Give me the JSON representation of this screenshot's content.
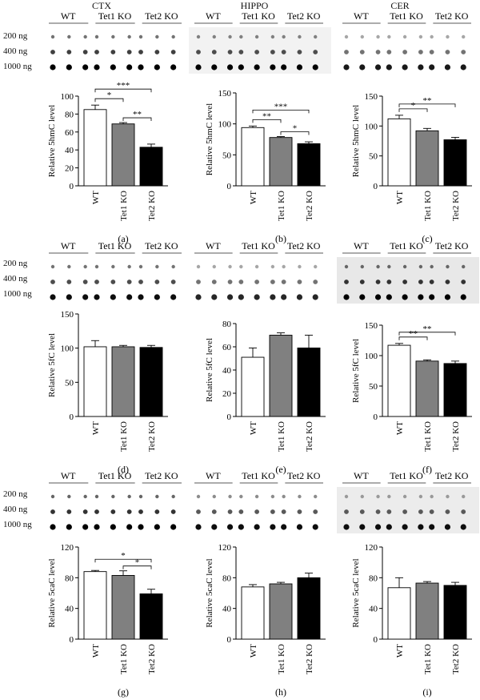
{
  "regions": [
    "CTX",
    "HIPPO",
    "CER"
  ],
  "dose_labels": [
    "200 ng",
    "400 ng",
    "1000 ng"
  ],
  "groups": [
    "WT",
    "Tet1 KO",
    "Tet2 KO"
  ],
  "chart_data": [
    {
      "id": "a",
      "panel_label": "(a)",
      "type": "bar",
      "ylabel": "Relative 5hmC level",
      "ylim": [
        0,
        100
      ],
      "yticks": [
        0,
        20,
        40,
        60,
        80,
        100
      ],
      "categories": [
        "WT",
        "Tet1 KO",
        "Tet2 KO"
      ],
      "values": [
        85,
        69,
        43
      ],
      "errors": [
        5,
        1.5,
        3.5
      ],
      "colors": [
        "#ffffff",
        "#808080",
        "#000000"
      ],
      "significance": [
        {
          "from": 0,
          "to": 1,
          "label": "*"
        },
        {
          "from": 0,
          "to": 2,
          "label": "***"
        },
        {
          "from": 1,
          "to": 2,
          "label": "**"
        }
      ]
    },
    {
      "id": "b",
      "panel_label": "(b)",
      "type": "bar",
      "ylabel": "Relative 5hmC level",
      "ylim": [
        0,
        150
      ],
      "yticks": [
        0,
        50,
        100,
        150
      ],
      "categories": [
        "WT",
        "Tet1 KO",
        "Tet2 KO"
      ],
      "values": [
        94,
        78,
        68
      ],
      "errors": [
        2.5,
        1.5,
        3
      ],
      "colors": [
        "#ffffff",
        "#808080",
        "#000000"
      ],
      "significance": [
        {
          "from": 0,
          "to": 1,
          "label": "**"
        },
        {
          "from": 0,
          "to": 2,
          "label": "***"
        },
        {
          "from": 1,
          "to": 2,
          "label": "*"
        }
      ]
    },
    {
      "id": "c",
      "panel_label": "(c)",
      "type": "bar",
      "ylabel": "Relative 5hmC level",
      "ylim": [
        0,
        150
      ],
      "yticks": [
        0,
        50,
        100,
        150
      ],
      "categories": [
        "WT",
        "Tet1 KO",
        "Tet2 KO"
      ],
      "values": [
        112,
        92,
        77
      ],
      "errors": [
        6,
        4,
        4
      ],
      "colors": [
        "#ffffff",
        "#808080",
        "#000000"
      ],
      "significance": [
        {
          "from": 0,
          "to": 1,
          "label": "*"
        },
        {
          "from": 0,
          "to": 2,
          "label": "**"
        }
      ]
    },
    {
      "id": "d",
      "panel_label": "(d)",
      "type": "bar",
      "ylabel": "Relative 5fC level",
      "ylim": [
        0,
        150
      ],
      "yticks": [
        0,
        50,
        100,
        150
      ],
      "categories": [
        "WT",
        "Tet1 KO",
        "Tet2 KO"
      ],
      "values": [
        102,
        102,
        101
      ],
      "errors": [
        9,
        2,
        3
      ],
      "colors": [
        "#ffffff",
        "#808080",
        "#000000"
      ],
      "significance": []
    },
    {
      "id": "e",
      "panel_label": "(e)",
      "type": "bar",
      "ylabel": "Relative 5fC level",
      "ylim": [
        0,
        80
      ],
      "yticks": [
        0,
        20,
        40,
        60,
        80
      ],
      "categories": [
        "WT",
        "Tet1 KO",
        "Tet2 KO"
      ],
      "values": [
        51,
        70,
        59
      ],
      "errors": [
        8,
        2,
        11
      ],
      "colors": [
        "#ffffff",
        "#808080",
        "#000000"
      ],
      "significance": []
    },
    {
      "id": "f",
      "panel_label": "(f)",
      "type": "bar",
      "ylabel": "Relative 5fC level",
      "ylim": [
        0,
        150
      ],
      "yticks": [
        0,
        50,
        100,
        150
      ],
      "categories": [
        "WT",
        "Tet1 KO",
        "Tet2 KO"
      ],
      "values": [
        117,
        91,
        87
      ],
      "errors": [
        3,
        2,
        4
      ],
      "colors": [
        "#ffffff",
        "#808080",
        "#000000"
      ],
      "significance": [
        {
          "from": 0,
          "to": 1,
          "label": "**"
        },
        {
          "from": 0,
          "to": 2,
          "label": "**"
        }
      ]
    },
    {
      "id": "g",
      "panel_label": "(g)",
      "type": "bar",
      "ylabel": "Relative 5caC level",
      "ylim": [
        0,
        120
      ],
      "yticks": [
        0,
        40,
        80,
        120
      ],
      "categories": [
        "WT",
        "Tet1 KO",
        "Tet2 KO"
      ],
      "values": [
        88,
        83,
        59
      ],
      "errors": [
        1.5,
        6,
        6
      ],
      "colors": [
        "#ffffff",
        "#808080",
        "#000000"
      ],
      "significance": [
        {
          "from": 0,
          "to": 2,
          "label": "*"
        },
        {
          "from": 1,
          "to": 2,
          "label": "*"
        }
      ]
    },
    {
      "id": "h",
      "panel_label": "(h)",
      "type": "bar",
      "ylabel": "Relative 5caC level",
      "ylim": [
        0,
        120
      ],
      "yticks": [
        0,
        40,
        80,
        120
      ],
      "categories": [
        "WT",
        "Tet1 KO",
        "Tet2 KO"
      ],
      "values": [
        68,
        72,
        80
      ],
      "errors": [
        3,
        2,
        6
      ],
      "colors": [
        "#ffffff",
        "#808080",
        "#000000"
      ],
      "significance": []
    },
    {
      "id": "i",
      "panel_label": "(i)",
      "type": "bar",
      "ylabel": "Relative 5caC level",
      "ylim": [
        0,
        120
      ],
      "yticks": [
        0,
        40,
        80,
        120
      ],
      "categories": [
        "WT",
        "Tet1 KO",
        "Tet2 KO"
      ],
      "values": [
        67,
        73,
        70
      ],
      "errors": [
        13,
        2,
        4
      ],
      "colors": [
        "#ffffff",
        "#808080",
        "#000000"
      ],
      "significance": []
    }
  ]
}
